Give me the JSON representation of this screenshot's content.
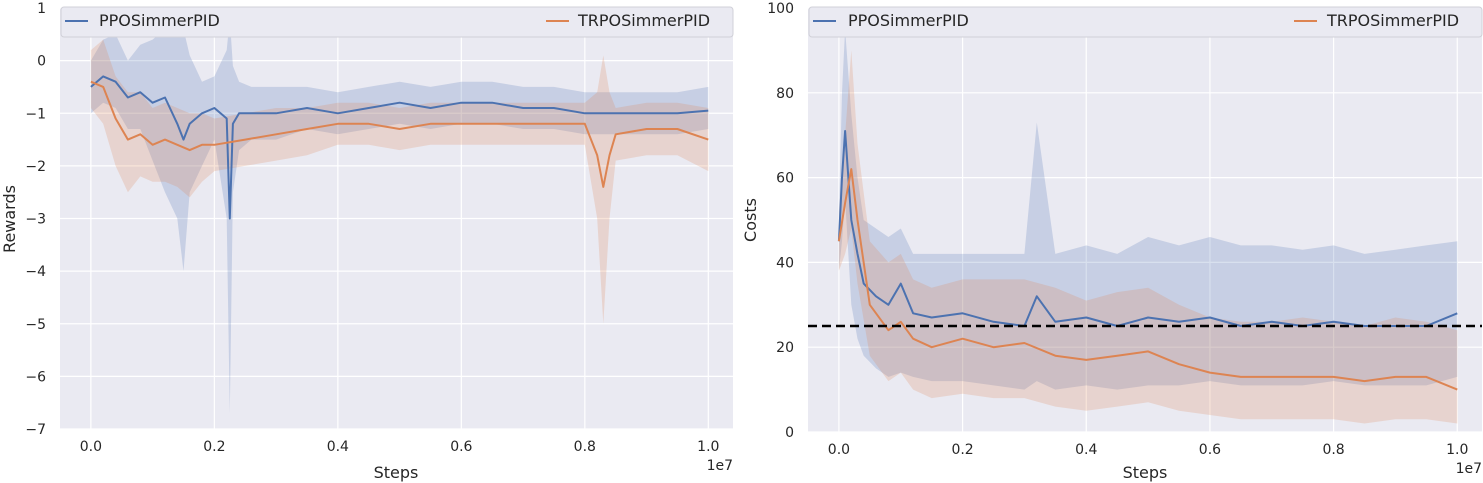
{
  "chart_data": [
    {
      "type": "line",
      "xlabel": "Steps",
      "ylabel": "Rewards",
      "x_multiplier": "1e7",
      "xlim": [
        -0.05,
        1.04
      ],
      "ylim": [
        -7,
        1
      ],
      "xticks": [
        0.0,
        0.2,
        0.4,
        0.6,
        0.8,
        1.0
      ],
      "xtick_labels": [
        "0.0",
        "0.2",
        "0.4",
        "0.6",
        "0.8",
        "1.0"
      ],
      "yticks": [
        -7,
        -6,
        -5,
        -4,
        -3,
        -2,
        -1,
        0,
        1
      ],
      "ytick_labels": [
        "−7",
        "−6",
        "−5",
        "−4",
        "−3",
        "−2",
        "−1",
        "0",
        "1"
      ],
      "grid": true,
      "legend": "top",
      "series": [
        {
          "name": "PPOSimmerPID",
          "color": "#4c72b0",
          "x": [
            0.0,
            0.02,
            0.04,
            0.06,
            0.08,
            0.1,
            0.12,
            0.14,
            0.15,
            0.16,
            0.18,
            0.2,
            0.22,
            0.225,
            0.23,
            0.24,
            0.26,
            0.3,
            0.35,
            0.4,
            0.45,
            0.5,
            0.55,
            0.6,
            0.65,
            0.7,
            0.75,
            0.8,
            0.85,
            0.9,
            0.95,
            1.0
          ],
          "mean": [
            -0.5,
            -0.3,
            -0.4,
            -0.7,
            -0.6,
            -0.8,
            -0.7,
            -1.2,
            -1.5,
            -1.2,
            -1.0,
            -0.9,
            -1.1,
            -3.0,
            -1.2,
            -1.0,
            -1.0,
            -1.0,
            -0.9,
            -1.0,
            -0.9,
            -0.8,
            -0.9,
            -0.8,
            -0.8,
            -0.9,
            -0.9,
            -1.0,
            -1.0,
            -1.0,
            -1.0,
            -0.95
          ],
          "lower": [
            -1.0,
            -0.8,
            -0.9,
            -1.3,
            -1.3,
            -1.9,
            -2.5,
            -3.0,
            -4.0,
            -2.5,
            -2.0,
            -1.5,
            -3.0,
            -6.7,
            -2.5,
            -1.7,
            -1.5,
            -1.5,
            -1.3,
            -1.4,
            -1.3,
            -1.2,
            -1.3,
            -1.2,
            -1.2,
            -1.3,
            -1.3,
            -1.4,
            -1.4,
            -1.4,
            -1.4,
            -1.3
          ],
          "upper": [
            0.0,
            0.4,
            0.5,
            0.0,
            0.3,
            0.4,
            0.6,
            0.8,
            0.6,
            0.1,
            -0.4,
            -0.3,
            0.2,
            0.8,
            -0.1,
            -0.4,
            -0.5,
            -0.5,
            -0.5,
            -0.6,
            -0.5,
            -0.4,
            -0.5,
            -0.4,
            -0.4,
            -0.5,
            -0.5,
            -0.6,
            -0.6,
            -0.6,
            -0.6,
            -0.5
          ]
        },
        {
          "name": "TRPOSimmerPID",
          "color": "#dd8452",
          "x": [
            0.0,
            0.02,
            0.04,
            0.06,
            0.08,
            0.1,
            0.12,
            0.14,
            0.16,
            0.18,
            0.2,
            0.25,
            0.3,
            0.35,
            0.4,
            0.45,
            0.5,
            0.55,
            0.6,
            0.65,
            0.7,
            0.75,
            0.8,
            0.82,
            0.83,
            0.84,
            0.85,
            0.9,
            0.95,
            1.0
          ],
          "mean": [
            -0.4,
            -0.5,
            -1.1,
            -1.5,
            -1.4,
            -1.6,
            -1.5,
            -1.6,
            -1.7,
            -1.6,
            -1.6,
            -1.5,
            -1.4,
            -1.3,
            -1.2,
            -1.2,
            -1.3,
            -1.2,
            -1.2,
            -1.2,
            -1.2,
            -1.2,
            -1.2,
            -1.8,
            -2.4,
            -1.8,
            -1.4,
            -1.3,
            -1.3,
            -1.5
          ],
          "lower": [
            -0.9,
            -1.2,
            -2.0,
            -2.5,
            -2.2,
            -2.3,
            -2.3,
            -2.4,
            -2.6,
            -2.3,
            -2.1,
            -2.0,
            -1.9,
            -1.8,
            -1.6,
            -1.6,
            -1.7,
            -1.6,
            -1.6,
            -1.6,
            -1.6,
            -1.6,
            -1.6,
            -3.0,
            -5.0,
            -3.0,
            -1.9,
            -1.8,
            -1.8,
            -2.1
          ],
          "upper": [
            0.2,
            0.4,
            -0.3,
            -0.6,
            -0.6,
            -0.9,
            -0.8,
            -0.9,
            -1.0,
            -1.0,
            -1.1,
            -1.0,
            -0.9,
            -0.9,
            -0.8,
            -0.8,
            -0.9,
            -0.8,
            -0.8,
            -0.8,
            -0.8,
            -0.8,
            -0.8,
            -0.6,
            0.1,
            -0.6,
            -0.9,
            -0.8,
            -0.8,
            -0.9
          ]
        }
      ]
    },
    {
      "type": "line",
      "xlabel": "Steps",
      "ylabel": "Costs",
      "x_multiplier": "1e7",
      "xlim": [
        -0.05,
        1.04
      ],
      "ylim": [
        0,
        100
      ],
      "xticks": [
        0.0,
        0.2,
        0.4,
        0.6,
        0.8,
        1.0
      ],
      "xtick_labels": [
        "0.0",
        "0.2",
        "0.4",
        "0.6",
        "0.8",
        "1.0"
      ],
      "yticks": [
        0,
        20,
        40,
        60,
        80,
        100
      ],
      "ytick_labels": [
        "0",
        "20",
        "40",
        "60",
        "80",
        "100"
      ],
      "grid": true,
      "legend": "top",
      "threshold": 25,
      "series": [
        {
          "name": "PPOSimmerPID",
          "color": "#4c72b0",
          "x": [
            0.0,
            0.005,
            0.01,
            0.02,
            0.03,
            0.04,
            0.06,
            0.08,
            0.1,
            0.12,
            0.15,
            0.2,
            0.25,
            0.3,
            0.32,
            0.35,
            0.4,
            0.45,
            0.5,
            0.55,
            0.6,
            0.65,
            0.7,
            0.75,
            0.8,
            0.85,
            0.9,
            0.95,
            1.0
          ],
          "mean": [
            45,
            60,
            71,
            50,
            42,
            35,
            32,
            30,
            35,
            28,
            27,
            28,
            26,
            25,
            32,
            26,
            27,
            25,
            27,
            26,
            27,
            25,
            26,
            25,
            26,
            25,
            25,
            25,
            28
          ],
          "lower": [
            38,
            45,
            55,
            30,
            22,
            18,
            15,
            13,
            14,
            13,
            12,
            12,
            11,
            10,
            12,
            10,
            11,
            10,
            11,
            11,
            12,
            11,
            11,
            11,
            12,
            11,
            11,
            11,
            13
          ],
          "upper": [
            52,
            80,
            95,
            75,
            60,
            50,
            48,
            46,
            48,
            42,
            42,
            42,
            42,
            42,
            73,
            42,
            44,
            42,
            46,
            44,
            46,
            44,
            44,
            43,
            44,
            42,
            43,
            44,
            45
          ]
        },
        {
          "name": "TRPOSimmerPID",
          "color": "#dd8452",
          "x": [
            0.0,
            0.01,
            0.02,
            0.03,
            0.05,
            0.08,
            0.1,
            0.12,
            0.15,
            0.2,
            0.25,
            0.3,
            0.35,
            0.4,
            0.45,
            0.5,
            0.55,
            0.6,
            0.65,
            0.7,
            0.75,
            0.8,
            0.85,
            0.9,
            0.95,
            1.0
          ],
          "mean": [
            45,
            54,
            62,
            50,
            30,
            24,
            26,
            22,
            20,
            22,
            20,
            21,
            18,
            17,
            18,
            19,
            16,
            14,
            13,
            13,
            13,
            13,
            12,
            13,
            13,
            10
          ],
          "lower": [
            38,
            42,
            48,
            35,
            18,
            12,
            14,
            10,
            8,
            9,
            8,
            8,
            6,
            5,
            6,
            7,
            5,
            4,
            3,
            3,
            3,
            3,
            2,
            3,
            3,
            2
          ],
          "upper": [
            52,
            70,
            90,
            68,
            45,
            40,
            42,
            36,
            34,
            36,
            36,
            36,
            34,
            31,
            33,
            34,
            30,
            27,
            26,
            26,
            27,
            26,
            25,
            27,
            26,
            24
          ]
        }
      ]
    }
  ]
}
